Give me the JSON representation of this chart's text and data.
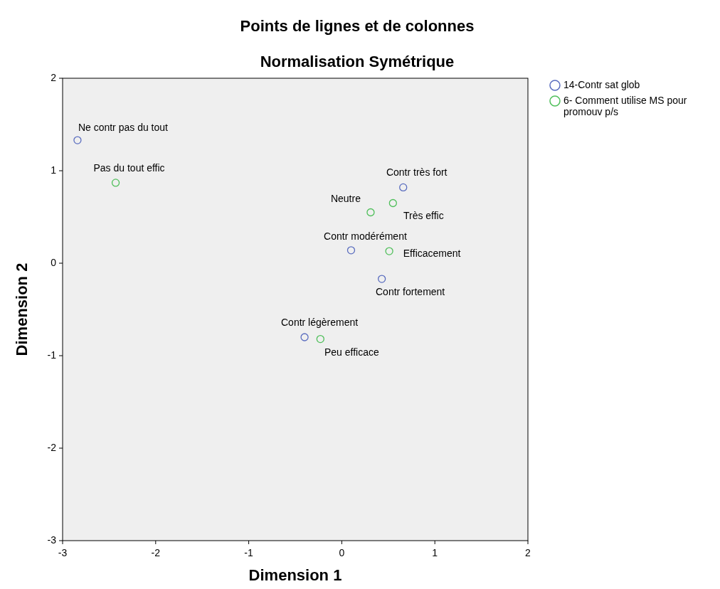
{
  "chart_data": {
    "type": "scatter",
    "title": "Points de lignes et de colonnes",
    "subtitle": "Normalisation Symétrique",
    "xlabel": "Dimension 1",
    "ylabel": "Dimension 2",
    "xlim": [
      -3,
      2
    ],
    "ylim": [
      -3,
      2
    ],
    "xticks": [
      -3,
      -2,
      -1,
      0,
      1,
      2
    ],
    "yticks": [
      -3,
      -2,
      -1,
      0,
      1,
      2
    ],
    "grid": false,
    "legend": "top right",
    "marker": "circle",
    "series": [
      {
        "name": "14-Contr sat glob",
        "color": "#5a6dbf",
        "x": [
          -2.84,
          0.66,
          0.1,
          0.43,
          -0.4
        ],
        "values": [
          1.33,
          0.82,
          0.14,
          -0.17,
          -0.8
        ]
      },
      {
        "name": "6- Comment utilise MS pour promouv p/s",
        "color": "#4fbf5a",
        "x": [
          -2.43,
          0.31,
          0.55,
          0.51,
          -0.23
        ],
        "values": [
          0.87,
          0.55,
          0.65,
          0.13,
          -0.82
        ]
      }
    ],
    "annotations": [
      {
        "text": "Ne contr pas du tout",
        "x": -2.84,
        "y": 1.33
      },
      {
        "text": "Contr très fort",
        "x": 0.66,
        "y": 0.82
      },
      {
        "text": "Contr modérément",
        "x": 0.1,
        "y": 0.14
      },
      {
        "text": "Contr fortement",
        "x": 0.43,
        "y": -0.17
      },
      {
        "text": "Contr légèrement",
        "x": -0.4,
        "y": -0.8
      },
      {
        "text": "Pas du tout effic",
        "x": -2.43,
        "y": 0.87
      },
      {
        "text": "Neutre",
        "x": 0.31,
        "y": 0.55
      },
      {
        "text": "Très effic",
        "x": 0.55,
        "y": 0.65
      },
      {
        "text": "Efficacement",
        "x": 0.51,
        "y": 0.13
      },
      {
        "text": "Peu efficace",
        "x": -0.23,
        "y": -0.82
      }
    ]
  }
}
